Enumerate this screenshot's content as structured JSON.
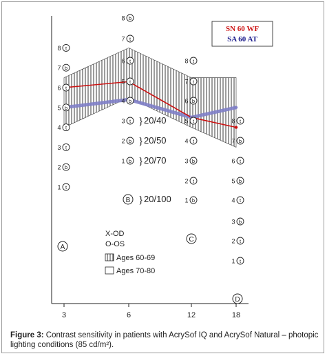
{
  "chart_data": {
    "type": "line",
    "x": [
      3,
      6,
      12,
      18
    ],
    "xticks": [
      "3",
      "6",
      "12",
      "18"
    ],
    "ylim": [
      0,
      9
    ],
    "series": [
      {
        "name": "SN 60 WF",
        "color": "#cc1111",
        "values": [
          6,
          6.3,
          4.5,
          4
        ]
      },
      {
        "name": "SA 60 AT",
        "color": "#8080c8",
        "values": [
          5,
          5.4,
          4.5,
          5
        ]
      }
    ],
    "hatched_band": {
      "low": [
        4,
        5.5,
        4,
        3
      ],
      "high": [
        6.5,
        8,
        6.5,
        6.5
      ]
    },
    "columns": [
      {
        "letter": "A",
        "circle_labels": [
          "8",
          "7",
          "6",
          "5",
          "4",
          "3",
          "2",
          "1"
        ],
        "circle_letters": [
          "t",
          "b",
          "t",
          "b",
          "t",
          "t",
          "b",
          "t"
        ],
        "values": [
          8,
          7,
          6,
          5,
          4,
          3,
          2,
          1
        ]
      },
      {
        "letter": "B",
        "circle_labels": [
          "8",
          "7",
          "6",
          "5",
          "4",
          "3",
          "2",
          "1"
        ],
        "circle_letters": [
          "b",
          "t",
          "t",
          "t",
          "b",
          "t",
          "b",
          "b"
        ],
        "values": [
          8,
          7,
          6,
          5,
          4,
          3,
          2,
          1
        ]
      },
      {
        "letter": "C",
        "circle_labels": [
          "8",
          "7",
          "6",
          "5",
          "4",
          "3",
          "2",
          "1"
        ],
        "circle_letters": [
          "t",
          "t",
          "b",
          "t",
          "t",
          "b",
          "t",
          "b"
        ],
        "values": [
          8,
          7,
          6,
          5,
          4,
          3,
          2,
          1
        ]
      },
      {
        "letter": "D",
        "circle_labels": [
          "8",
          "7",
          "6",
          "5",
          "4",
          "3",
          "2",
          "1"
        ],
        "circle_letters": [
          "t",
          "b",
          "t",
          "b",
          "t",
          "b",
          "t",
          "t"
        ],
        "values": [
          8,
          7,
          6,
          5,
          4,
          3,
          2,
          1
        ]
      }
    ],
    "acuity_labels": [
      {
        "level": "40",
        "text": "20/40"
      },
      {
        "level": "50",
        "text": "20/50"
      },
      {
        "level": "70",
        "text": "20/70"
      },
      {
        "level": "100",
        "text": "20/100"
      }
    ],
    "notes": [
      "X-OD",
      "O-OS"
    ],
    "legend_items": [
      "Ages 60-69",
      "Ages 70-80"
    ],
    "legend_placement": "top-right"
  },
  "caption": {
    "label": "Figure 3:",
    "text": " Contrast sensitivity in patients with AcrySof IQ and AcrySof Natural – photopic lighting conditions (85 cd/m²)."
  }
}
